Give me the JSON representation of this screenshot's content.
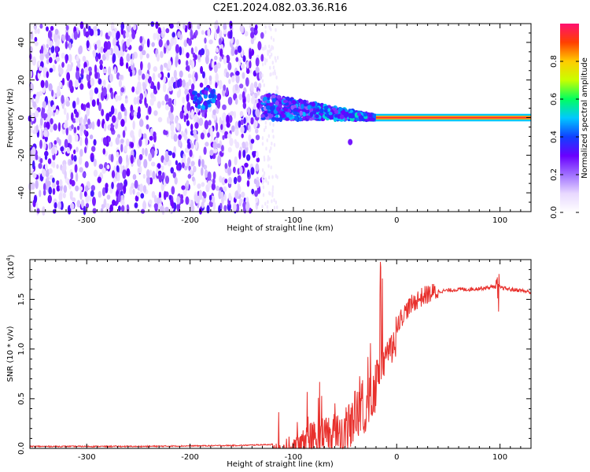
{
  "title": "C2E1.2024.082.03.36.R16",
  "chart_data": [
    {
      "type": "heatmap",
      "name": "spectrogram",
      "xlabel": "Height of straight line (km)",
      "ylabel": "Frequency (Hz)",
      "xlim": [
        -355,
        130
      ],
      "ylim": [
        -50,
        50
      ],
      "x_ticks": [
        -300,
        -200,
        -100,
        0,
        100
      ],
      "y_ticks": [
        -40,
        -20,
        0,
        20,
        40
      ],
      "colorbar": {
        "label": "Normalized spectral amplitude",
        "range": [
          0,
          1
        ],
        "ticks": [
          "0.0",
          "0.2",
          "0.4",
          "0.6",
          "0.8"
        ],
        "tick_values": [
          0.0,
          0.2,
          0.4,
          0.6,
          0.8
        ],
        "colors": [
          "#ffffff",
          "#e8d8ff",
          "#a070ff",
          "#6a00ff",
          "#1040ff",
          "#00c8ff",
          "#00ff60",
          "#c8ff00",
          "#ffcc00",
          "#ff4000",
          "#ff1070"
        ]
      },
      "regions": [
        {
          "x_range": [
            -355,
            -130
          ],
          "f_range": [
            -50,
            50
          ],
          "amplitude": 0.1,
          "pattern": "noise"
        },
        {
          "x_range": [
            -130,
            -20
          ],
          "f_range": [
            -10,
            15
          ],
          "amplitude": 0.35,
          "pattern": "converging-band"
        },
        {
          "x_range": [
            -20,
            130
          ],
          "f_range": [
            -1,
            1
          ],
          "amplitude": 0.95,
          "pattern": "carrier-line"
        }
      ]
    },
    {
      "type": "line",
      "name": "snr",
      "xlabel": "Height of straight line (km)",
      "ylabel": "SNR (10 * v/v)",
      "scale_label": "(x10",
      "scale_exponent": "4",
      "scale_suffix": ")",
      "xlim": [
        -355,
        130
      ],
      "ylim": [
        0,
        1.9
      ],
      "x_ticks": [
        -300,
        -200,
        -100,
        0,
        100
      ],
      "y_ticks": [
        "0.0",
        "0.5",
        "1.0",
        "1.5"
      ],
      "y_tick_values": [
        0.0,
        0.5,
        1.0,
        1.5
      ],
      "color": "#e8302c",
      "series": [
        {
          "x": [
            -355,
            -300,
            -250,
            -200,
            -150,
            -120,
            -110,
            -100,
            -90,
            -80,
            -70,
            -60,
            -50,
            -40,
            -30,
            -20,
            -15,
            -10,
            0,
            10,
            20,
            30,
            40,
            50,
            60,
            70,
            80,
            90,
            95,
            100,
            110,
            120,
            130
          ],
          "y": [
            0.02,
            0.02,
            0.02,
            0.025,
            0.03,
            0.04,
            0.08,
            0.15,
            0.22,
            0.28,
            0.32,
            0.36,
            0.42,
            0.58,
            0.72,
            0.88,
            0.98,
            1.1,
            1.25,
            1.4,
            1.5,
            1.55,
            1.58,
            1.59,
            1.6,
            1.6,
            1.61,
            1.62,
            1.63,
            1.62,
            1.6,
            1.59,
            1.57
          ]
        }
      ]
    }
  ]
}
